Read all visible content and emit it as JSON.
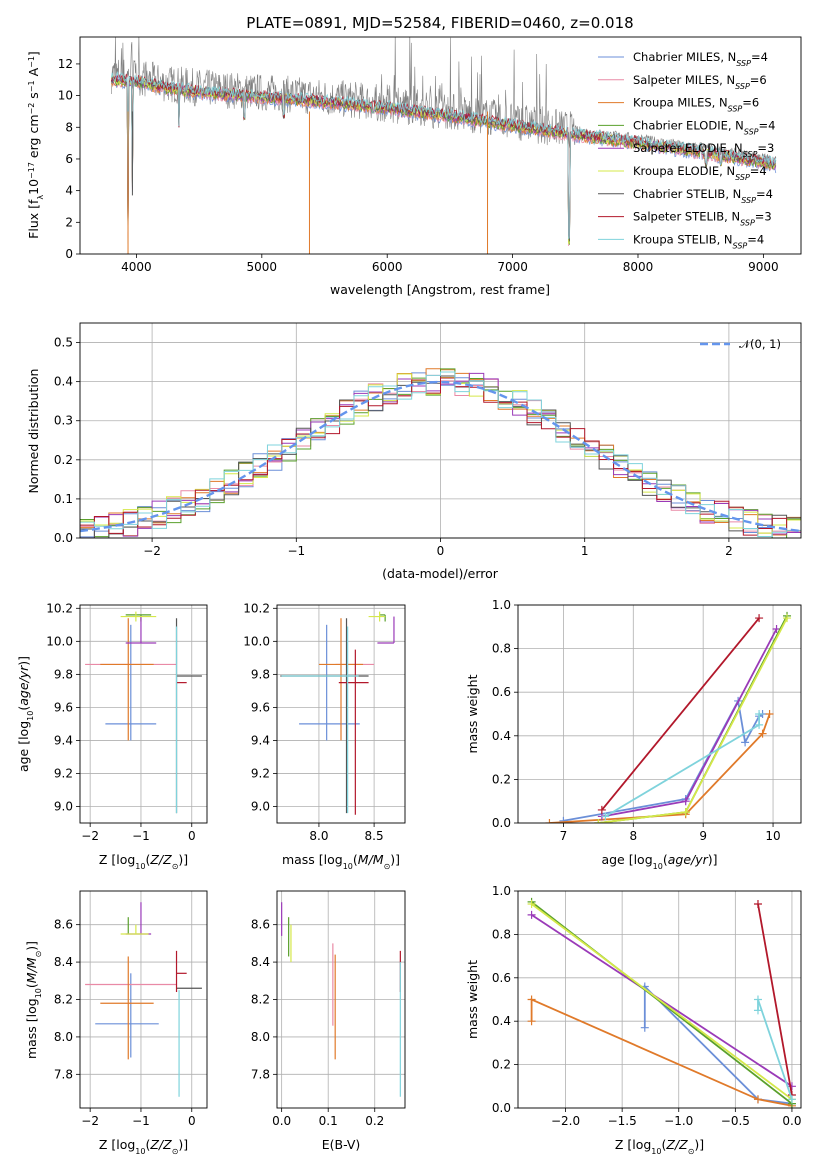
{
  "figure": {
    "title": "PLATE=0891, MJD=52584, FIBERID=0460, z=0.018"
  },
  "colors": {
    "Chabrier MILES": "#6b8fd8",
    "Salpeter MILES": "#e98aa6",
    "Kroupa MILES": "#e07a2a",
    "Chabrier ELODIE": "#5aa02c",
    "Salpeter ELODIE": "#9a3ab8",
    "Kroupa ELODIE": "#d5e84a",
    "Chabrier STELIB": "#555555",
    "Salpeter STELIB": "#b2182b",
    "Kroupa STELIB": "#7fd3dc",
    "data": "#808080",
    "grid": "#b0b0b0"
  },
  "chart_data": [
    {
      "id": "spectrum",
      "type": "line",
      "title": "PLATE=0891, MJD=52584, FIBERID=0460, z=0.018",
      "xlabel": "wavelength [Angstrom, rest frame]",
      "ylabel": "Flux [f_λ 10^-17 erg cm^-2 s^-1 A^-1]",
      "xlim": [
        3550,
        9300
      ],
      "ylim": [
        0,
        13.7
      ],
      "xticks": [
        4000,
        5000,
        6000,
        7000,
        8000,
        9000
      ],
      "yticks": [
        0,
        2,
        4,
        6,
        8,
        10,
        12
      ],
      "grid": false,
      "legend": "top-right",
      "legend_entries": [
        {
          "name": "Chabrier MILES",
          "n": "4"
        },
        {
          "name": "Salpeter MILES",
          "n": "6"
        },
        {
          "name": "Kroupa MILES",
          "n": "6"
        },
        {
          "name": "Chabrier ELODIE",
          "n": "4"
        },
        {
          "name": "Salpeter ELODIE",
          "n": "3"
        },
        {
          "name": "Kroupa ELODIE",
          "n": "4"
        },
        {
          "name": "Chabrier STELIB",
          "n": "4"
        },
        {
          "name": "Salpeter STELIB",
          "n": "3"
        },
        {
          "name": "Kroupa STELIB",
          "n": "4"
        }
      ],
      "continuum": [
        [
          3800,
          11.3
        ],
        [
          4000,
          11.2
        ],
        [
          4200,
          10.8
        ],
        [
          4500,
          10.5
        ],
        [
          5000,
          10.2
        ],
        [
          5500,
          9.9
        ],
        [
          6000,
          9.5
        ],
        [
          6500,
          9.0
        ],
        [
          7000,
          8.4
        ],
        [
          7500,
          7.8
        ],
        [
          8000,
          7.3
        ],
        [
          8500,
          6.7
        ],
        [
          9000,
          6.1
        ],
        [
          9100,
          5.9
        ]
      ],
      "absorption_dips": [
        [
          3933,
          0.2
        ],
        [
          3968,
          3.8
        ],
        [
          4340,
          8.0
        ],
        [
          4861,
          8.5
        ],
        [
          5175,
          8.6
        ],
        [
          5890,
          8.9
        ],
        [
          7450,
          0.4
        ],
        [
          8500,
          7.0
        ],
        [
          8542,
          5.5
        ],
        [
          8662,
          5.6
        ]
      ]
    },
    {
      "id": "residual-histogram",
      "type": "histogram",
      "xlabel": "(data-model)/error",
      "ylabel": "Normed distribution",
      "xlim": [
        -2.5,
        2.5
      ],
      "ylim": [
        0,
        0.55
      ],
      "xticks": [
        -2,
        -1,
        0,
        1,
        2
      ],
      "yticks": [
        0.0,
        0.1,
        0.2,
        0.3,
        0.4,
        0.5
      ],
      "grid": true,
      "legend": "top-right",
      "reference_curve": "𝒩(0, 1)",
      "bin_width": 0.1
    },
    {
      "id": "age-vs-Z",
      "type": "errorbar",
      "xlabel": "Z [log10(Z/Z⊙)]",
      "ylabel": "age [log10(age/yr)]",
      "xlim": [
        -2.2,
        0.3
      ],
      "ylim": [
        8.9,
        10.22
      ],
      "xticks": [
        -2,
        -1,
        0
      ],
      "yticks": [
        9.0,
        9.2,
        9.4,
        9.6,
        9.8,
        10.0,
        10.2
      ],
      "grid": true,
      "points": [
        {
          "model": "Chabrier MILES",
          "x": -1.2,
          "xerr": [
            0.5,
            0.5
          ],
          "y": 9.5,
          "yerr": [
            0.1,
            0.6
          ]
        },
        {
          "model": "Salpeter MILES",
          "x": -1.3,
          "xerr": [
            0.8,
            1.0
          ],
          "y": 9.86,
          "yerr": [
            0,
            0
          ]
        },
        {
          "model": "Kroupa MILES",
          "x": -1.25,
          "xerr": [
            0.55,
            0.5
          ],
          "y": 9.86,
          "yerr": [
            0.46,
            0.28
          ]
        },
        {
          "model": "Chabrier ELODIE",
          "x": -1.0,
          "xerr": [
            0.3,
            0.2
          ],
          "y": 10.16,
          "yerr": [
            0.04,
            0
          ]
        },
        {
          "model": "Salpeter ELODIE",
          "x": -1.0,
          "xerr": [
            0.3,
            0.3
          ],
          "y": 9.99,
          "yerr": [
            0,
            0.16
          ]
        },
        {
          "model": "Kroupa ELODIE",
          "x": -1.1,
          "xerr": [
            0.3,
            0.4
          ],
          "y": 10.15,
          "yerr": [
            0.03,
            0.03
          ]
        },
        {
          "model": "Chabrier STELIB",
          "x": -0.3,
          "xerr": [
            0,
            0.5
          ],
          "y": 9.79,
          "yerr": [
            0.83,
            0.35
          ]
        },
        {
          "model": "Salpeter STELIB",
          "x": -0.3,
          "xerr": [
            0,
            0.2
          ],
          "y": 9.75,
          "yerr": [
            0,
            0
          ]
        },
        {
          "model": "Kroupa STELIB",
          "x": -0.3,
          "xerr": [
            0,
            0
          ],
          "y": 9.79,
          "yerr": [
            0.83,
            0.3
          ]
        }
      ]
    },
    {
      "id": "age-vs-mass",
      "type": "errorbar",
      "xlabel": "mass [log10(M/M⊙)]",
      "ylabel": "",
      "xlim": [
        7.62,
        8.78
      ],
      "ylim": [
        8.9,
        10.22
      ],
      "xticks": [
        8.0,
        8.5
      ],
      "yticks": [
        9.0,
        9.2,
        9.4,
        9.6,
        9.8,
        10.0,
        10.2
      ],
      "grid": true,
      "points": [
        {
          "model": "Chabrier MILES",
          "x": 8.07,
          "xerr": [
            0.25,
            0.3
          ],
          "y": 9.5,
          "yerr": [
            0.1,
            0.6
          ]
        },
        {
          "model": "Salpeter MILES",
          "x": 8.3,
          "xerr": [
            0.15,
            0.2
          ],
          "y": 9.86,
          "yerr": [
            0,
            0
          ]
        },
        {
          "model": "Kroupa MILES",
          "x": 8.2,
          "xerr": [
            0.2,
            0.2
          ],
          "y": 9.86,
          "yerr": [
            0.46,
            0.28
          ]
        },
        {
          "model": "Chabrier ELODIE",
          "x": 8.6,
          "xerr": [
            0.05,
            0
          ],
          "y": 10.16,
          "yerr": [
            0.04,
            0
          ]
        },
        {
          "model": "Salpeter ELODIE",
          "x": 8.68,
          "xerr": [
            0.15,
            0
          ],
          "y": 9.99,
          "yerr": [
            0,
            0.16
          ]
        },
        {
          "model": "Kroupa ELODIE",
          "x": 8.55,
          "xerr": [
            0.1,
            0.05
          ],
          "y": 10.15,
          "yerr": [
            0.03,
            0.03
          ]
        },
        {
          "model": "Chabrier STELIB",
          "x": 8.25,
          "xerr": [
            0.6,
            0.2
          ],
          "y": 9.79,
          "yerr": [
            0.83,
            0.35
          ]
        },
        {
          "model": "Salpeter STELIB",
          "x": 8.33,
          "xerr": [
            0.15,
            0.12
          ],
          "y": 9.75,
          "yerr": [
            0.8,
            0.2
          ]
        },
        {
          "model": "Kroupa STELIB",
          "x": 8.26,
          "xerr": [
            0.6,
            0.1
          ],
          "y": 9.79,
          "yerr": [
            0.83,
            0.3
          ]
        }
      ]
    },
    {
      "id": "mass-weight-vs-age",
      "type": "line",
      "xlabel": "age [log10(age/yr)]",
      "ylabel": "mass weight",
      "xlim": [
        6.35,
        10.4
      ],
      "ylim": [
        0,
        1.0
      ],
      "xticks": [
        7,
        8,
        9,
        10
      ],
      "yticks": [
        0.0,
        0.2,
        0.4,
        0.6,
        0.8,
        1.0
      ],
      "grid": true,
      "series": [
        {
          "model": "Chabrier MILES",
          "x": [
            7.0,
            8.75,
            9.5,
            9.6,
            9.8,
            9.85
          ],
          "y": [
            0.01,
            0.11,
            0.56,
            0.37,
            0.49,
            0.5
          ]
        },
        {
          "model": "Kroupa MILES",
          "x": [
            6.8,
            8.75,
            9.85,
            9.95
          ],
          "y": [
            0.0,
            0.04,
            0.41,
            0.5
          ]
        },
        {
          "model": "Salpeter ELODIE",
          "x": [
            7.55,
            8.75,
            10.05
          ],
          "y": [
            0.03,
            0.1,
            0.89
          ]
        },
        {
          "model": "Chabrier ELODIE",
          "x": [
            7.5,
            8.75,
            10.2
          ],
          "y": [
            0.0,
            0.05,
            0.95
          ]
        },
        {
          "model": "Kroupa ELODIE",
          "x": [
            7.5,
            8.75,
            10.2
          ],
          "y": [
            0.0,
            0.05,
            0.94
          ]
        },
        {
          "model": "Salpeter STELIB",
          "x": [
            7.55,
            9.8
          ],
          "y": [
            0.06,
            0.94
          ]
        },
        {
          "model": "Kroupa STELIB",
          "x": [
            7.6,
            9.8,
            9.8
          ],
          "y": [
            0.03,
            0.45,
            0.5
          ]
        }
      ]
    },
    {
      "id": "mass-vs-Z",
      "type": "errorbar",
      "xlabel": "Z [log10(Z/Z⊙)]",
      "ylabel": "mass [log10(M/M⊙)]",
      "xlim": [
        -2.2,
        0.3
      ],
      "ylim": [
        7.62,
        8.78
      ],
      "xticks": [
        -2,
        -1,
        0
      ],
      "yticks": [
        7.8,
        8.0,
        8.2,
        8.4,
        8.6
      ],
      "grid": true,
      "points": [
        {
          "model": "Chabrier MILES",
          "x": -1.2,
          "xerr": [
            0.7,
            0.55
          ],
          "y": 8.07,
          "yerr": [
            0.18,
            0.27
          ]
        },
        {
          "model": "Salpeter MILES",
          "x": -1.3,
          "xerr": [
            0.8,
            1.0
          ],
          "y": 8.28,
          "yerr": [
            0,
            0
          ]
        },
        {
          "model": "Kroupa MILES",
          "x": -1.25,
          "xerr": [
            0.55,
            0.5
          ],
          "y": 8.18,
          "yerr": [
            0.3,
            0.25
          ]
        },
        {
          "model": "Chabrier ELODIE",
          "x": -1.25,
          "xerr": [
            0,
            0
          ],
          "y": 8.55,
          "yerr": [
            0,
            0.09
          ]
        },
        {
          "model": "Salpeter ELODIE",
          "x": -1.0,
          "xerr": [
            0.3,
            0.2
          ],
          "y": 8.55,
          "yerr": [
            0,
            0.17
          ]
        },
        {
          "model": "Kroupa ELODIE",
          "x": -1.1,
          "xerr": [
            0.3,
            0.25
          ],
          "y": 8.55,
          "yerr": [
            0,
            0.05
          ]
        },
        {
          "model": "Chabrier STELIB",
          "x": -0.3,
          "xerr": [
            0,
            0.5
          ],
          "y": 8.26,
          "yerr": [
            0,
            0
          ]
        },
        {
          "model": "Salpeter STELIB",
          "x": -0.3,
          "xerr": [
            0,
            0.2
          ],
          "y": 8.34,
          "yerr": [
            0.1,
            0.12
          ]
        },
        {
          "model": "Kroupa STELIB",
          "x": -0.25,
          "xerr": [
            0,
            0
          ],
          "y": 8.1,
          "yerr": [
            0.42,
            0.15
          ]
        }
      ]
    },
    {
      "id": "mass-vs-ebv",
      "type": "errorbar",
      "xlabel": "E(B-V)",
      "ylabel": "",
      "xlim": [
        -0.01,
        0.265
      ],
      "ylim": [
        7.62,
        8.78
      ],
      "xticks": [
        0.0,
        0.1,
        0.2
      ],
      "yticks": [
        7.8,
        8.0,
        8.2,
        8.4,
        8.6
      ],
      "grid": true,
      "points": [
        {
          "model": "Salpeter ELODIE",
          "x": 0.0,
          "xerr": [
            0,
            0
          ],
          "y": 8.62,
          "yerr": [
            0.08,
            0.1
          ]
        },
        {
          "model": "Chabrier ELODIE",
          "x": 0.015,
          "xerr": [
            0,
            0
          ],
          "y": 8.55,
          "yerr": [
            0.12,
            0.09
          ]
        },
        {
          "model": "Kroupa ELODIE",
          "x": 0.02,
          "xerr": [
            0,
            0
          ],
          "y": 8.5,
          "yerr": [
            0.1,
            0.1
          ]
        },
        {
          "model": "Salpeter MILES",
          "x": 0.11,
          "xerr": [
            0,
            0
          ],
          "y": 8.28,
          "yerr": [
            0.22,
            0.22
          ]
        },
        {
          "model": "Kroupa MILES",
          "x": 0.115,
          "xerr": [
            0,
            0
          ],
          "y": 8.18,
          "yerr": [
            0.3,
            0.26
          ]
        },
        {
          "model": "Salpeter STELIB",
          "x": 0.255,
          "xerr": [
            0,
            0
          ],
          "y": 8.34,
          "yerr": [
            0.1,
            0.12
          ]
        },
        {
          "model": "Kroupa STELIB",
          "x": 0.255,
          "xerr": [
            0,
            0
          ],
          "y": 8.1,
          "yerr": [
            0.42,
            0.3
          ]
        }
      ]
    },
    {
      "id": "mass-weight-vs-Z",
      "type": "line",
      "xlabel": "Z [log10(Z/Z⊙)]",
      "ylabel": "mass weight",
      "xlim": [
        -2.42,
        0.08
      ],
      "ylim": [
        0,
        1.0
      ],
      "xticks": [
        -2.0,
        -1.5,
        -1.0,
        -0.5,
        0.0
      ],
      "yticks": [
        0.0,
        0.2,
        0.4,
        0.6,
        0.8,
        1.0
      ],
      "grid": true,
      "series": [
        {
          "model": "Chabrier MILES",
          "x": [
            -1.3,
            -1.3,
            -0.3,
            0.0
          ],
          "y": [
            0.37,
            0.56,
            0.04,
            0.02
          ]
        },
        {
          "model": "Kroupa MILES",
          "x": [
            -2.3,
            -2.3,
            -0.3,
            0.0
          ],
          "y": [
            0.4,
            0.5,
            0.04,
            0.01
          ]
        },
        {
          "model": "Salpeter ELODIE",
          "x": [
            -2.3,
            0.0
          ],
          "y": [
            0.89,
            0.1
          ]
        },
        {
          "model": "Chabrier ELODIE",
          "x": [
            -2.3,
            0.0
          ],
          "y": [
            0.95,
            0.02
          ]
        },
        {
          "model": "Kroupa ELODIE",
          "x": [
            -2.3,
            0.0
          ],
          "y": [
            0.94,
            0.04
          ]
        },
        {
          "model": "Salpeter STELIB",
          "x": [
            -0.3,
            0.0
          ],
          "y": [
            0.94,
            0.06
          ]
        },
        {
          "model": "Kroupa STELIB",
          "x": [
            -0.3,
            -0.3,
            0.0
          ],
          "y": [
            0.45,
            0.5,
            0.04
          ]
        }
      ]
    }
  ]
}
